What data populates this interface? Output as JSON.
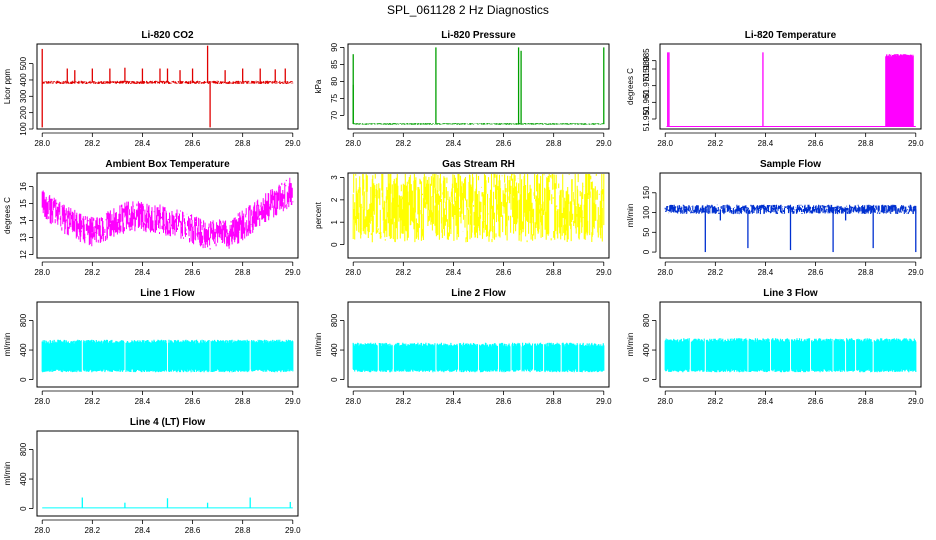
{
  "figure": {
    "title": "SPL_061128  2 Hz Diagnostics"
  },
  "chart_data": [
    {
      "id": "co2",
      "type": "line",
      "title": "Li-820 CO2",
      "ylabel": "Licor ppm",
      "color": "#e00000",
      "xlim": [
        28.0,
        29.0
      ],
      "ylim": [
        100,
        620
      ],
      "xticks": [
        28.0,
        28.2,
        28.4,
        28.6,
        28.8,
        29.0
      ],
      "xtick_labels": [
        "28.0",
        "28.2",
        "28.4",
        "28.6",
        "28.8",
        "29.0"
      ],
      "yticks": [
        100,
        200,
        300,
        400,
        500
      ],
      "ytick_labels": [
        "100",
        "200",
        "300",
        "400",
        "500"
      ],
      "series": [
        {
          "name": "CO2",
          "baseline": 385,
          "noise": 10,
          "spikes": [
            [
              28.0,
              590
            ],
            [
              28.0,
              110
            ],
            [
              28.1,
              470
            ],
            [
              28.13,
              460
            ],
            [
              28.2,
              470
            ],
            [
              28.27,
              470
            ],
            [
              28.33,
              475
            ],
            [
              28.4,
              470
            ],
            [
              28.47,
              470
            ],
            [
              28.5,
              470
            ],
            [
              28.55,
              460
            ],
            [
              28.6,
              470
            ],
            [
              28.66,
              610
            ],
            [
              28.67,
              110
            ],
            [
              28.73,
              460
            ],
            [
              28.8,
              470
            ],
            [
              28.87,
              470
            ],
            [
              28.93,
              465
            ],
            [
              28.97,
              470
            ]
          ]
        }
      ]
    },
    {
      "id": "pressure",
      "type": "line",
      "title": "Li-820 Pressure",
      "ylabel": "kPa",
      "color": "#00a000",
      "xlim": [
        28.0,
        29.0
      ],
      "ylim": [
        66,
        91
      ],
      "xticks": [
        28.0,
        28.2,
        28.4,
        28.6,
        28.8,
        29.0
      ],
      "xtick_labels": [
        "28.0",
        "28.2",
        "28.4",
        "28.6",
        "28.8",
        "29.0"
      ],
      "yticks": [
        70,
        75,
        80,
        85,
        90
      ],
      "ytick_labels": [
        "70",
        "75",
        "80",
        "85",
        "90"
      ],
      "series": [
        {
          "name": "Pressure",
          "baseline": 67.5,
          "noise": 0.25,
          "spikes": [
            [
              28.0,
              88
            ],
            [
              28.0,
              79
            ],
            [
              28.33,
              90
            ],
            [
              28.66,
              90
            ],
            [
              28.67,
              89
            ],
            [
              29.0,
              90
            ]
          ]
        }
      ]
    },
    {
      "id": "temperature",
      "type": "line",
      "title": "Li-820 Temperature",
      "ylabel": "degrees C",
      "color": "#ff00ff",
      "xlim": [
        28.0,
        29.0
      ],
      "ylim": [
        51.944,
        51.995
      ],
      "xticks": [
        28.0,
        28.2,
        28.4,
        28.6,
        28.8,
        29.0
      ],
      "xtick_labels": [
        "28.0",
        "28.2",
        "28.4",
        "28.6",
        "28.8",
        "29.0"
      ],
      "yticks": [
        51.95,
        51.96,
        51.97,
        51.98,
        51.985
      ],
      "ytick_labels": [
        "51.950",
        "51.960",
        "51.970",
        "51.980",
        "51.985"
      ],
      "series": [
        {
          "name": "Temperature",
          "baseline": 51.9455,
          "noise": 0,
          "spikes": [
            [
              28.01,
              51.99
            ],
            [
              28.015,
              51.99
            ],
            [
              28.39,
              51.99
            ]
          ],
          "bursts": [
            [
              28.88,
              28.99,
              51.989
            ]
          ]
        }
      ]
    },
    {
      "id": "ambient",
      "type": "line",
      "title": "Ambient Box Temperature",
      "ylabel": "degrees C",
      "color": "#ff00ff",
      "xlim": [
        28.0,
        29.0
      ],
      "ylim": [
        11.8,
        16.8
      ],
      "xticks": [
        28.0,
        28.2,
        28.4,
        28.6,
        28.8,
        29.0
      ],
      "xtick_labels": [
        "28.0",
        "28.2",
        "28.4",
        "28.6",
        "28.8",
        "29.0"
      ],
      "yticks": [
        12,
        13,
        14,
        15,
        16
      ],
      "ytick_labels": [
        "12",
        "13",
        "14",
        "15",
        "16"
      ],
      "series": [
        {
          "name": "Ambient",
          "trend": [
            [
              28.0,
              15.0
            ],
            [
              28.1,
              14.0
            ],
            [
              28.2,
              13.3
            ],
            [
              28.35,
              14.3
            ],
            [
              28.5,
              14.0
            ],
            [
              28.65,
              13.2
            ],
            [
              28.75,
              13.2
            ],
            [
              28.9,
              14.8
            ],
            [
              29.0,
              15.8
            ]
          ],
          "noise": 0.9
        }
      ]
    },
    {
      "id": "rh",
      "type": "line",
      "title": "Gas Stream RH",
      "ylabel": "percent",
      "color": "#ffff00",
      "xlim": [
        28.0,
        29.0
      ],
      "ylim": [
        -0.6,
        3.2
      ],
      "xticks": [
        28.0,
        28.2,
        28.4,
        28.6,
        28.8,
        29.0
      ],
      "xtick_labels": [
        "28.0",
        "28.2",
        "28.4",
        "28.6",
        "28.8",
        "29.0"
      ],
      "yticks": [
        0,
        1,
        2,
        3
      ],
      "ytick_labels": [
        "0",
        "1",
        "2",
        "3"
      ],
      "series": [
        {
          "name": "RH",
          "baseline": 1.7,
          "noise": 1.6
        }
      ]
    },
    {
      "id": "sample",
      "type": "line",
      "title": "Sample Flow",
      "ylabel": "ml/min",
      "color": "#0030d0",
      "xlim": [
        28.0,
        29.0
      ],
      "ylim": [
        -15,
        200
      ],
      "xticks": [
        28.0,
        28.2,
        28.4,
        28.6,
        28.8,
        29.0
      ],
      "xtick_labels": [
        "28.0",
        "28.2",
        "28.4",
        "28.6",
        "28.8",
        "29.0"
      ],
      "yticks": [
        0,
        50,
        100,
        150
      ],
      "ytick_labels": [
        "0",
        "50",
        "100",
        "150"
      ],
      "series": [
        {
          "name": "Sample",
          "baseline": 108,
          "noise": 12,
          "spikes": [
            [
              28.16,
              0
            ],
            [
              28.22,
              80
            ],
            [
              28.33,
              10
            ],
            [
              28.5,
              5
            ],
            [
              28.67,
              0
            ],
            [
              28.72,
              80
            ],
            [
              28.83,
              10
            ],
            [
              29.0,
              0
            ]
          ]
        }
      ]
    },
    {
      "id": "line1",
      "type": "line",
      "title": "Line 1 Flow",
      "ylabel": "ml/min",
      "color": "#00ffff",
      "xlim": [
        28.0,
        29.0
      ],
      "ylim": [
        -100,
        1050
      ],
      "xticks": [
        28.0,
        28.2,
        28.4,
        28.6,
        28.8,
        29.0
      ],
      "xtick_labels": [
        "28.0",
        "28.2",
        "28.4",
        "28.6",
        "28.8",
        "29.0"
      ],
      "yticks": [
        0,
        400,
        800
      ],
      "ytick_labels": [
        "0",
        "400",
        "800"
      ],
      "series": [
        {
          "name": "Line1",
          "band": [
            100,
            540
          ],
          "gaps": [
            28.16,
            28.33,
            28.5,
            28.67,
            28.83
          ]
        }
      ]
    },
    {
      "id": "line2",
      "type": "line",
      "title": "Line 2 Flow",
      "ylabel": "ml/min",
      "color": "#00ffff",
      "xlim": [
        28.0,
        29.0
      ],
      "ylim": [
        -100,
        1050
      ],
      "xticks": [
        28.0,
        28.2,
        28.4,
        28.6,
        28.8,
        29.0
      ],
      "xtick_labels": [
        "28.0",
        "28.2",
        "28.4",
        "28.6",
        "28.8",
        "29.0"
      ],
      "yticks": [
        0,
        400,
        800
      ],
      "ytick_labels": [
        "0",
        "400",
        "800"
      ],
      "series": [
        {
          "name": "Line2",
          "band": [
            100,
            500
          ],
          "gaps": [
            28.1,
            28.16,
            28.33,
            28.42,
            28.5,
            28.58,
            28.63,
            28.67,
            28.72,
            28.76,
            28.83,
            28.9
          ]
        }
      ]
    },
    {
      "id": "line3",
      "type": "line",
      "title": "Line 3 Flow",
      "ylabel": "ml/min",
      "color": "#00ffff",
      "xlim": [
        28.0,
        29.0
      ],
      "ylim": [
        -100,
        1050
      ],
      "xticks": [
        28.0,
        28.2,
        28.4,
        28.6,
        28.8,
        29.0
      ],
      "xtick_labels": [
        "28.0",
        "28.2",
        "28.4",
        "28.6",
        "28.8",
        "29.0"
      ],
      "yticks": [
        0,
        400,
        800
      ],
      "ytick_labels": [
        "0",
        "400",
        "800"
      ],
      "series": [
        {
          "name": "Line3",
          "band": [
            100,
            560
          ],
          "gaps": [
            28.1,
            28.16,
            28.33,
            28.42,
            28.5,
            28.58,
            28.67,
            28.72,
            28.76,
            28.83
          ]
        }
      ]
    },
    {
      "id": "line4",
      "type": "line",
      "title": "Line 4 (LT) Flow",
      "ylabel": "ml/min",
      "color": "#00ffff",
      "xlim": [
        28.0,
        29.0
      ],
      "ylim": [
        -100,
        1050
      ],
      "xticks": [
        28.0,
        28.2,
        28.4,
        28.6,
        28.8,
        29.0
      ],
      "xtick_labels": [
        "28.0",
        "28.2",
        "28.4",
        "28.6",
        "28.8",
        "29.0"
      ],
      "yticks": [
        0,
        400,
        800
      ],
      "ytick_labels": [
        "0",
        "400",
        "800"
      ],
      "series": [
        {
          "name": "Line4",
          "baseline": 10,
          "noise": 0,
          "spikes": [
            [
              28.16,
              150
            ],
            [
              28.33,
              80
            ],
            [
              28.5,
              140
            ],
            [
              28.66,
              80
            ],
            [
              28.83,
              150
            ],
            [
              28.99,
              90
            ]
          ]
        }
      ]
    }
  ]
}
